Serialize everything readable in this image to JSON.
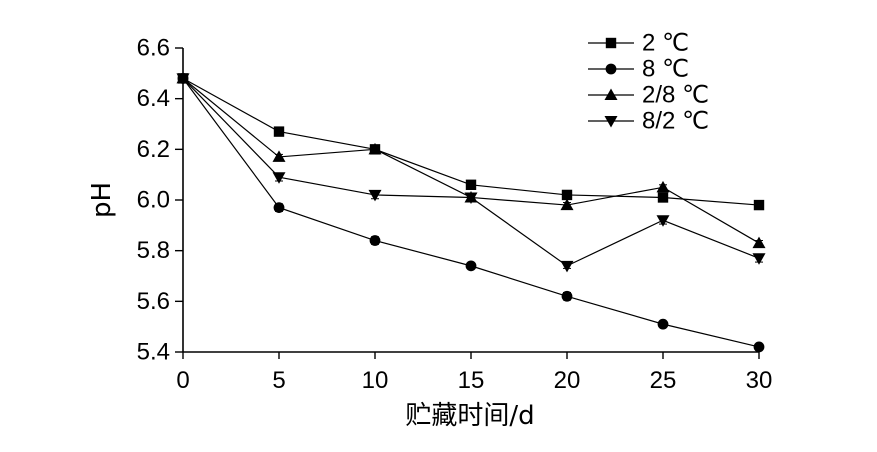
{
  "chart_data": {
    "type": "line",
    "xlabel": "贮藏时间/d",
    "ylabel": "pH",
    "xlim": [
      0,
      30
    ],
    "ylim": [
      5.4,
      6.6
    ],
    "x_tick_labels": [
      "0",
      "5",
      "10",
      "15",
      "20",
      "25",
      "30"
    ],
    "y_tick_labels": [
      "5.4",
      "5.6",
      "5.8",
      "6.0",
      "6.2",
      "6.4",
      "6.6"
    ],
    "grid": false,
    "legend_position": "top-right",
    "x": [
      0,
      5,
      10,
      15,
      20,
      25,
      30
    ],
    "series": [
      {
        "name": "2 ℃",
        "marker": "square",
        "color": "#000000",
        "values": [
          6.48,
          6.27,
          6.2,
          6.06,
          6.02,
          6.01,
          5.98
        ],
        "error": [
          0.01,
          0.01,
          0.01,
          0.01,
          0.01,
          0.01,
          0.01
        ]
      },
      {
        "name": "8 ℃",
        "marker": "circle",
        "color": "#000000",
        "values": [
          6.48,
          5.97,
          5.84,
          5.74,
          5.62,
          5.51,
          5.42
        ],
        "error": [
          0.01,
          0.015,
          0.015,
          0.01,
          0.015,
          0.01,
          0.01
        ]
      },
      {
        "name": "2/8 ℃",
        "marker": "triangle-up",
        "color": "#000000",
        "values": [
          6.48,
          6.17,
          6.2,
          6.01,
          5.98,
          6.05,
          5.83
        ],
        "error": [
          0.01,
          0.01,
          0.01,
          0.01,
          0.01,
          0.01,
          0.01
        ]
      },
      {
        "name": "8/2 ℃",
        "marker": "triangle-down",
        "color": "#000000",
        "values": [
          6.48,
          6.09,
          6.02,
          6.01,
          5.74,
          5.92,
          5.77
        ],
        "error": [
          0.01,
          0.015,
          0.015,
          0.01,
          0.01,
          0.015,
          0.015
        ]
      }
    ]
  }
}
